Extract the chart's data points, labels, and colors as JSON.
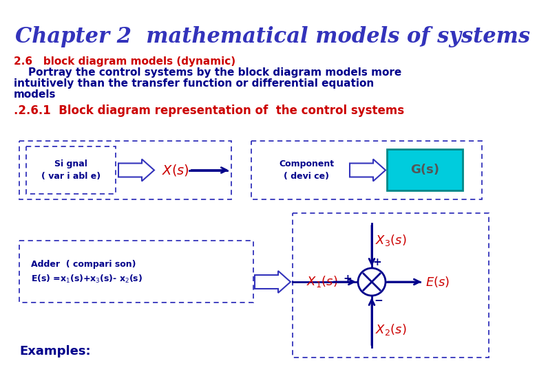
{
  "title": "Chapter 2  mathematical models of systems",
  "title_color": "#3333BB",
  "title_fontsize": 22,
  "bg_color": "#FFFFFF",
  "section_26": "2.6   block diagram models (dynamic)",
  "section_26_color": "#CC0000",
  "body_line1": "    Portray the control systems by the block diagram models more",
  "body_line2": "intuitively than the transfer function or differential equation",
  "body_line3": "models",
  "body_color": "#00008B",
  "body_fontsize": 11,
  "section_261": ".2.6.1  Block diagram representation of  the control systems",
  "section_261_color": "#CC0000",
  "section_261_fontsize": 12,
  "dashed_border_color": "#3333BB",
  "cyan_box_color": "#00CCDD",
  "cyan_box_edge": "#008888",
  "blue_dark": "#00008B",
  "red_color": "#CC0000",
  "signal_text": "Si gnal\n( var i abl e)",
  "component_text": "Component\n( devi ce)",
  "gs_text": "G(s)",
  "adder_line1": "Adder  ( compari son)",
  "adder_line2": "E(s) =x",
  "examples_text": "Examples:"
}
